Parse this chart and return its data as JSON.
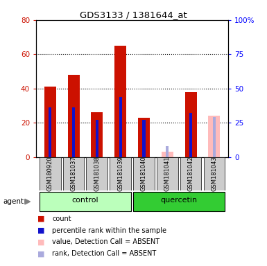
{
  "title": "GDS3133 / 1381644_at",
  "samples": [
    "GSM180920",
    "GSM181037",
    "GSM181038",
    "GSM181039",
    "GSM181040",
    "GSM181041",
    "GSM181042",
    "GSM181043"
  ],
  "red_values": [
    41,
    48,
    26,
    65,
    23,
    0,
    38,
    0
  ],
  "blue_values": [
    36,
    36,
    27,
    44,
    27,
    0,
    32,
    0
  ],
  "pink_values": [
    0,
    0,
    0,
    0,
    0,
    3,
    0,
    24
  ],
  "lavender_values": [
    0,
    0,
    0,
    0,
    0,
    8,
    0,
    29
  ],
  "ylim_left": [
    0,
    80
  ],
  "ylim_right": [
    0,
    100
  ],
  "yticks_left": [
    0,
    20,
    40,
    60,
    80
  ],
  "yticks_right": [
    0,
    25,
    50,
    75,
    100
  ],
  "ytick_labels_left": [
    "0",
    "20",
    "40",
    "60",
    "80"
  ],
  "ytick_labels_right": [
    "0",
    "25",
    "50",
    "75",
    "100%"
  ],
  "bar_width": 0.5,
  "red_color": "#cc1100",
  "blue_color": "#1111cc",
  "pink_color": "#ffbbbb",
  "lavender_color": "#aaaadd",
  "control_bg": "#bbffbb",
  "quercetin_bg": "#33cc33",
  "sample_bg": "#cccccc",
  "agent_label": "agent"
}
